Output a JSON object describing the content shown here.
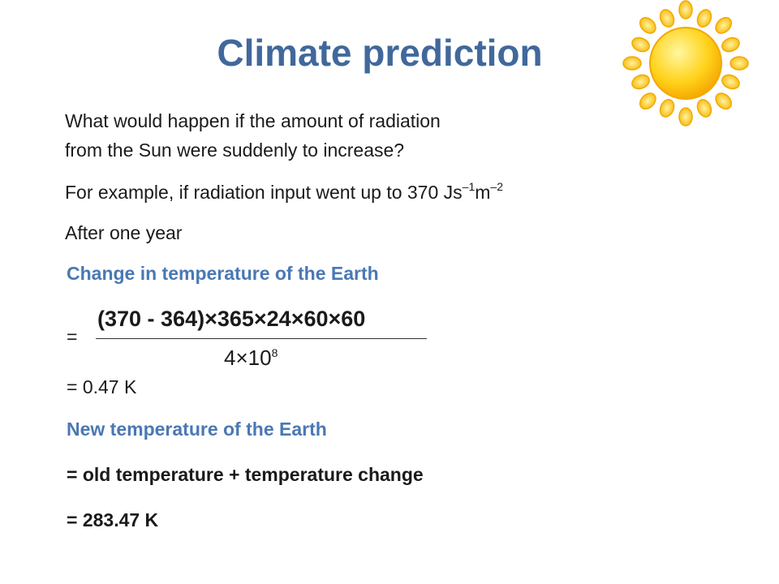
{
  "title": "Climate prediction",
  "question": [
    "What would happen if the amount of radiation",
    "from the Sun were suddenly to increase?"
  ],
  "example": {
    "text": "For example, if radiation input went up to 370 Js",
    "sup1": "–1",
    "unit2": "m",
    "sup2": "–2"
  },
  "after": "After one year",
  "change_heading": "Change in temperature of the Earth",
  "equals": "=",
  "fraction": {
    "numerator": "(370 - 364)×365×24×60×60",
    "denominator": "4×10",
    "exponent": "8"
  },
  "result1": "= 0.47 K",
  "new_heading": "New temperature of the Earth",
  "formula": "=  old temperature + temperature change",
  "result2": "= 283.47 K"
}
